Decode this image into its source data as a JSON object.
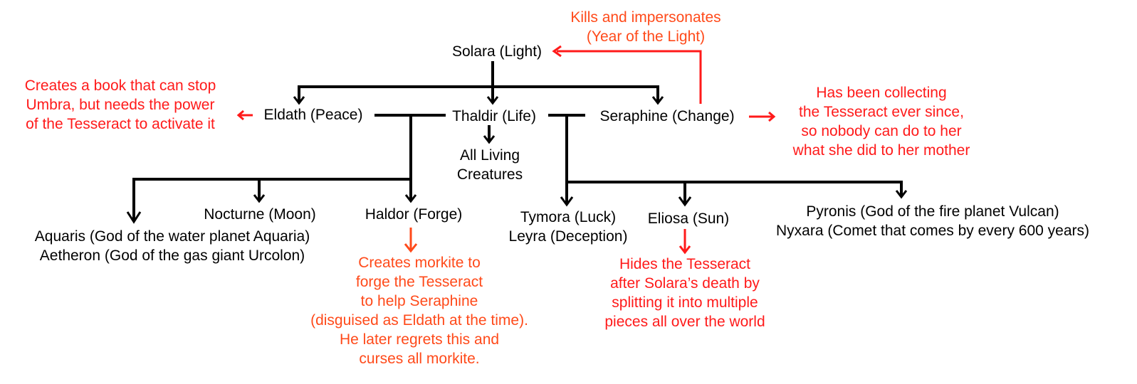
{
  "nodes": {
    "solara": "Solara (Light)",
    "eldath": "Eldath (Peace)",
    "thaldir": "Thaldir (Life)",
    "seraphine": "Seraphine (Change)",
    "living_creatures": [
      "All Living",
      "Creatures"
    ],
    "nocturne": "Nocturne (Moon)",
    "haldor": "Haldor (Forge)",
    "aquaris_aetheron": [
      "Aquaris (God of the water planet Aquaria)",
      "Aetheron (God of the gas giant Urcolon)"
    ],
    "tymora_leyra": [
      "Tymora (Luck)",
      "Leyra (Deception)"
    ],
    "eliosa": "Eliosa (Sun)",
    "pyronis_nyxara": [
      "Pyronis (God of the fire planet Vulcan)",
      "Nyxara (Comet that comes by every 600 years)"
    ]
  },
  "notes": {
    "kills": [
      "Kills and impersonates",
      "(Year of the Light)"
    ],
    "eldath_book": [
      "Creates a book that can stop",
      "Umbra, but needs the power",
      "of the Tesseract to activate it"
    ],
    "seraphine_collect": [
      "Has been collecting",
      "the Tesseract ever since,",
      "so nobody can do to her",
      "what she did to her mother"
    ],
    "haldor_morkite": [
      "Creates morkite to",
      "forge the Tesseract",
      "to help Seraphine",
      "(disguised as Eldath at the time).",
      "He later regrets this and",
      "curses all morkite."
    ],
    "eliosa_hides": [
      "Hides the Tesseract",
      "after Solara’s death by",
      "splitting it into multiple",
      "pieces all over the world"
    ]
  },
  "colors": {
    "line": "#000000",
    "note_red": "#ff1a1a",
    "note_orange": "#ff4a1a"
  }
}
